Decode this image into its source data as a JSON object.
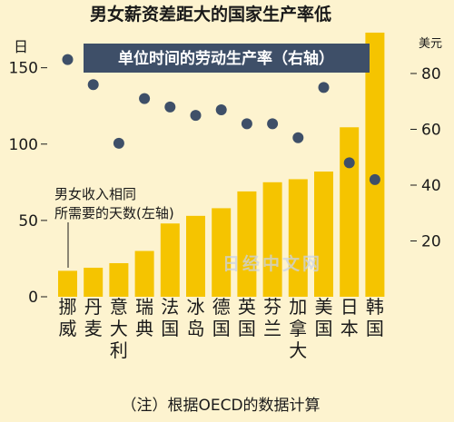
{
  "chart_data": {
    "type": "bar",
    "title": "男女薪资差距大的国家生产率低",
    "left_axis_unit": "日",
    "right_axis_unit": "美元",
    "left_ticks": [
      0,
      50,
      100,
      150
    ],
    "right_ticks": [
      20,
      40,
      60,
      80
    ],
    "ylim_left": [
      0,
      170
    ],
    "ylim_right": [
      0,
      93
    ],
    "categories": [
      "挪威",
      "丹麦",
      "意大利",
      "瑞典",
      "法国",
      "冰岛",
      "德国",
      "英国",
      "芬兰",
      "加拿大",
      "美国",
      "日本",
      "韩国"
    ],
    "series": [
      {
        "name": "男女收入相同所需要的天数(左轴)",
        "axis": "left",
        "style": "bar",
        "values": [
          17,
          19,
          22,
          30,
          48,
          53,
          58,
          69,
          75,
          77,
          82,
          111,
          173
        ]
      },
      {
        "name": "单位时间的劳动生产率（右轴）",
        "axis": "right",
        "style": "dot",
        "values": [
          85,
          76,
          55,
          71,
          68,
          65,
          67,
          62,
          62,
          57,
          75,
          48,
          42
        ]
      }
    ],
    "legend_bar_text": [
      "男女收入相同",
      "所需要的天数(左轴)"
    ],
    "legend_dot_text": "单位时间的劳动生产率（右轴）",
    "note": "（注）根据OECD的数据计算",
    "watermark": "日经中文网",
    "colors": {
      "background": "#fdf3cf",
      "bar": "#f5c400",
      "dot": "#3e4f68",
      "legend_box": "#3e4f68",
      "text": "#1a1a1a"
    }
  }
}
